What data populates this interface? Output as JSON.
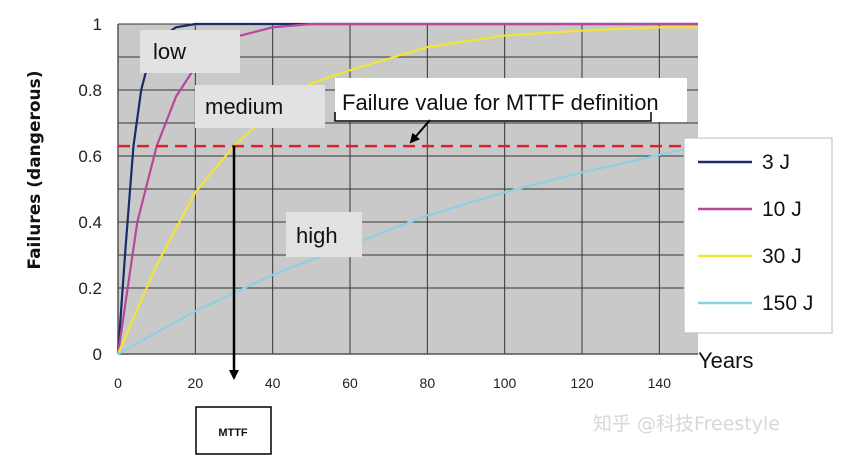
{
  "chart_data": {
    "type": "line",
    "xlabel": "Years",
    "ylabel": "Failures (dangerous)",
    "xlim": [
      0,
      150
    ],
    "ylim": [
      0,
      1
    ],
    "x_ticks": [
      "0",
      "20",
      "40",
      "60",
      "80",
      "100",
      "120",
      "140"
    ],
    "y_ticks": [
      "0",
      "0.2",
      "0.4",
      "0.6",
      "0.8",
      "1"
    ],
    "grid": true,
    "legend_position": "right",
    "series": [
      {
        "name": "3 J",
        "color": "#1a2a6c",
        "points": [
          [
            0,
            0
          ],
          [
            2,
            0.33
          ],
          [
            4,
            0.63
          ],
          [
            6,
            0.8
          ],
          [
            8,
            0.89
          ],
          [
            10,
            0.95
          ],
          [
            15,
            0.99
          ],
          [
            20,
            1.0
          ],
          [
            150,
            1.0
          ]
        ]
      },
      {
        "name": "10 J",
        "color": "#b7479b",
        "points": [
          [
            0,
            0
          ],
          [
            5,
            0.4
          ],
          [
            10,
            0.63
          ],
          [
            15,
            0.78
          ],
          [
            20,
            0.87
          ],
          [
            30,
            0.96
          ],
          [
            40,
            0.99
          ],
          [
            50,
            1.0
          ],
          [
            150,
            1.0
          ]
        ]
      },
      {
        "name": "30 J",
        "color": "#f2e437",
        "points": [
          [
            0,
            0
          ],
          [
            10,
            0.27
          ],
          [
            20,
            0.49
          ],
          [
            30,
            0.63
          ],
          [
            40,
            0.74
          ],
          [
            50,
            0.82
          ],
          [
            60,
            0.86
          ],
          [
            80,
            0.93
          ],
          [
            100,
            0.965
          ],
          [
            120,
            0.98
          ],
          [
            140,
            0.99
          ],
          [
            150,
            0.99
          ]
        ]
      },
      {
        "name": "150 J",
        "color": "#8ed0e3",
        "points": [
          [
            0,
            0
          ],
          [
            20,
            0.13
          ],
          [
            40,
            0.24
          ],
          [
            60,
            0.33
          ],
          [
            80,
            0.42
          ],
          [
            100,
            0.49
          ],
          [
            120,
            0.55
          ],
          [
            150,
            0.63
          ]
        ]
      }
    ],
    "failure_threshold": 0.63,
    "mttf_x": 30,
    "annotations": {
      "low": "low",
      "medium": "medium",
      "high": "high",
      "failure_value": "Failure value for MTTF definition",
      "mttf": "MTTF"
    }
  },
  "watermark": "知乎 @科技Freestyle"
}
